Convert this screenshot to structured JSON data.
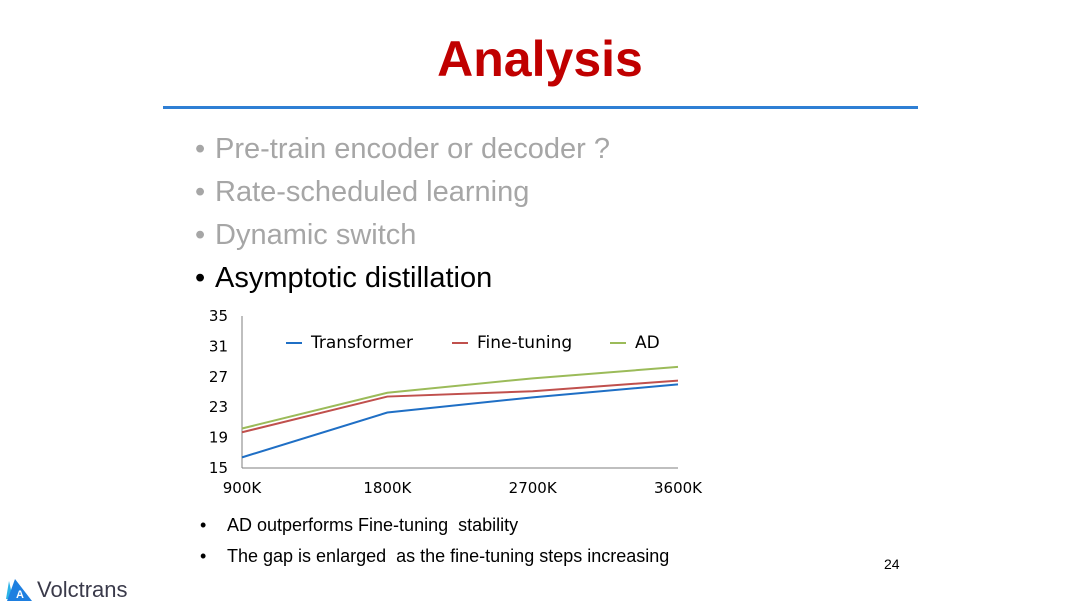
{
  "slide": {
    "title": "Analysis",
    "bullets": [
      {
        "text": "Pre-train encoder or decoder ?",
        "state": "dim"
      },
      {
        "text": "Rate-scheduled learning",
        "state": "dim"
      },
      {
        "text": "Dynamic switch",
        "state": "dim"
      },
      {
        "text": "Asymptotic distillation",
        "state": "active"
      }
    ],
    "notes": [
      "AD outperforms Fine-tuning  stability",
      "The gap is enlarged  as the fine-tuning steps increasing"
    ],
    "page_number": "24",
    "logo_text": "Volctrans",
    "bullet_glyph": "•"
  },
  "colors": {
    "title": "#c00000",
    "rule": "#2f7fd4",
    "dim_text": "#a6a6a6"
  },
  "chart_data": {
    "type": "line",
    "categories": [
      "900K",
      "1800K",
      "2700K",
      "3600K"
    ],
    "series": [
      {
        "name": "Transformer",
        "color": "#1f6fc5",
        "values": [
          16.4,
          22.3,
          24.3,
          26.0
        ]
      },
      {
        "name": "Fine-tuning",
        "color": "#c0504d",
        "values": [
          19.7,
          24.4,
          25.1,
          26.5
        ]
      },
      {
        "name": "AD",
        "color": "#9bbb59",
        "values": [
          20.2,
          24.9,
          26.8,
          28.3
        ]
      }
    ],
    "yticks": [
      15,
      19,
      23,
      27,
      31,
      35
    ],
    "ylim": [
      15,
      35
    ],
    "legend_position": "top",
    "grid": false
  }
}
